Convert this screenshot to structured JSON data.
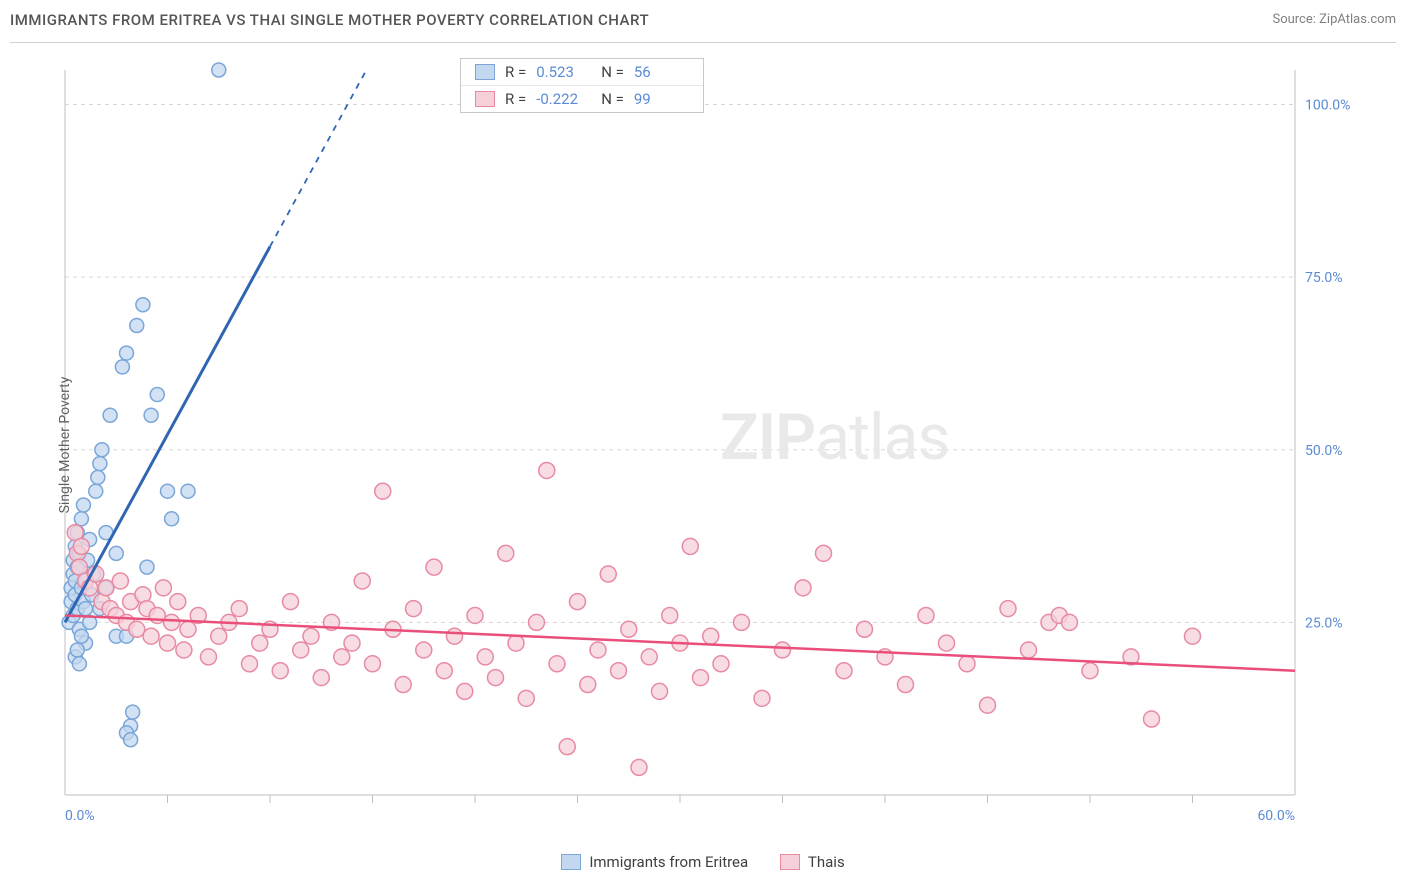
{
  "title": "IMMIGRANTS FROM ERITREA VS THAI SINGLE MOTHER POVERTY CORRELATION CHART",
  "source_label": "Source: ZipAtlas.com",
  "y_axis_label": "Single Mother Poverty",
  "watermark_a": "ZIP",
  "watermark_b": "atlas",
  "chart": {
    "type": "scatter",
    "background_color": "#ffffff",
    "grid_color": "#d8d8d8",
    "axis_color": "#bfbfbf",
    "xlim": [
      0,
      60
    ],
    "ylim": [
      0,
      105
    ],
    "x_tick_labels": [
      {
        "pos": 0,
        "label": "0.0%"
      },
      {
        "pos": 60,
        "label": "60.0%"
      }
    ],
    "x_minor_ticks": [
      5,
      10,
      15,
      20,
      25,
      30,
      35,
      40,
      45,
      50,
      55
    ],
    "y_ticks": [
      {
        "pos": 25,
        "label": "25.0%"
      },
      {
        "pos": 50,
        "label": "50.0%"
      },
      {
        "pos": 75,
        "label": "75.0%"
      },
      {
        "pos": 100,
        "label": "100.0%"
      }
    ],
    "label_color": "#5b8bd4",
    "label_fontsize": 14,
    "series": [
      {
        "name": "Immigrants from Eritrea",
        "marker_fill": "#c3d7ef",
        "marker_stroke": "#7aa6d8",
        "marker_radius": 7,
        "trend_color": "#2f66b3",
        "trend_width": 3,
        "trend_solid_until_x": 10,
        "R": 0.523,
        "N": 56,
        "regression": {
          "x1": 0,
          "y1": 25,
          "x2": 14.7,
          "y2": 105
        },
        "points": [
          [
            0.2,
            25
          ],
          [
            0.3,
            28
          ],
          [
            0.3,
            30
          ],
          [
            0.4,
            32
          ],
          [
            0.4,
            26
          ],
          [
            0.4,
            34
          ],
          [
            0.5,
            29
          ],
          [
            0.5,
            31
          ],
          [
            0.5,
            36
          ],
          [
            0.6,
            38
          ],
          [
            0.6,
            27
          ],
          [
            0.6,
            33
          ],
          [
            0.7,
            35
          ],
          [
            0.7,
            24
          ],
          [
            0.8,
            30
          ],
          [
            0.8,
            40
          ],
          [
            0.9,
            42
          ],
          [
            0.9,
            28
          ],
          [
            1.0,
            31
          ],
          [
            1.0,
            22
          ],
          [
            1.1,
            34
          ],
          [
            1.2,
            37
          ],
          [
            1.2,
            25
          ],
          [
            1.3,
            29
          ],
          [
            1.4,
            32
          ],
          [
            1.5,
            44
          ],
          [
            1.6,
            46
          ],
          [
            1.7,
            48
          ],
          [
            1.7,
            27
          ],
          [
            1.8,
            50
          ],
          [
            2.0,
            38
          ],
          [
            2.0,
            30
          ],
          [
            2.2,
            55
          ],
          [
            2.5,
            23
          ],
          [
            2.5,
            35
          ],
          [
            2.8,
            62
          ],
          [
            3.0,
            64
          ],
          [
            3.0,
            23
          ],
          [
            3.2,
            10
          ],
          [
            3.3,
            12
          ],
          [
            3.5,
            68
          ],
          [
            3.8,
            71
          ],
          [
            4.0,
            33
          ],
          [
            4.2,
            55
          ],
          [
            4.5,
            58
          ],
          [
            5.0,
            44
          ],
          [
            5.2,
            40
          ],
          [
            3.0,
            9
          ],
          [
            3.2,
            8
          ],
          [
            6.0,
            44
          ],
          [
            7.5,
            105
          ],
          [
            0.5,
            20
          ],
          [
            0.6,
            21
          ],
          [
            0.7,
            19
          ],
          [
            0.8,
            23
          ],
          [
            1.0,
            27
          ]
        ]
      },
      {
        "name": "Thais",
        "marker_fill": "#f6d0d9",
        "marker_stroke": "#e88aa2",
        "marker_radius": 8,
        "trend_color": "#e94f7a",
        "trend_width": 2.5,
        "R": -0.222,
        "N": 99,
        "regression": {
          "x1": 0,
          "y1": 26,
          "x2": 60,
          "y2": 18
        },
        "points": [
          [
            0.5,
            38
          ],
          [
            0.6,
            35
          ],
          [
            0.7,
            33
          ],
          [
            0.8,
            36
          ],
          [
            1.0,
            31
          ],
          [
            1.2,
            30
          ],
          [
            1.5,
            32
          ],
          [
            1.8,
            28
          ],
          [
            2.0,
            30
          ],
          [
            2.2,
            27
          ],
          [
            2.5,
            26
          ],
          [
            2.7,
            31
          ],
          [
            3.0,
            25
          ],
          [
            3.2,
            28
          ],
          [
            3.5,
            24
          ],
          [
            3.8,
            29
          ],
          [
            4.0,
            27
          ],
          [
            4.2,
            23
          ],
          [
            4.5,
            26
          ],
          [
            4.8,
            30
          ],
          [
            5.0,
            22
          ],
          [
            5.2,
            25
          ],
          [
            5.5,
            28
          ],
          [
            5.8,
            21
          ],
          [
            6.0,
            24
          ],
          [
            6.5,
            26
          ],
          [
            7.0,
            20
          ],
          [
            7.5,
            23
          ],
          [
            8.0,
            25
          ],
          [
            8.5,
            27
          ],
          [
            9.0,
            19
          ],
          [
            9.5,
            22
          ],
          [
            10.0,
            24
          ],
          [
            10.5,
            18
          ],
          [
            11.0,
            28
          ],
          [
            11.5,
            21
          ],
          [
            12.0,
            23
          ],
          [
            12.5,
            17
          ],
          [
            13.0,
            25
          ],
          [
            13.5,
            20
          ],
          [
            14.0,
            22
          ],
          [
            14.5,
            31
          ],
          [
            15.0,
            19
          ],
          [
            15.5,
            44
          ],
          [
            16.0,
            24
          ],
          [
            16.5,
            16
          ],
          [
            17.0,
            27
          ],
          [
            17.5,
            21
          ],
          [
            18.0,
            33
          ],
          [
            18.5,
            18
          ],
          [
            19.0,
            23
          ],
          [
            19.5,
            15
          ],
          [
            20.0,
            26
          ],
          [
            20.5,
            20
          ],
          [
            21.0,
            17
          ],
          [
            21.5,
            35
          ],
          [
            22.0,
            22
          ],
          [
            22.5,
            14
          ],
          [
            23.0,
            25
          ],
          [
            23.5,
            47
          ],
          [
            24.0,
            19
          ],
          [
            24.5,
            7
          ],
          [
            25.0,
            28
          ],
          [
            25.5,
            16
          ],
          [
            26.0,
            21
          ],
          [
            26.5,
            32
          ],
          [
            27.0,
            18
          ],
          [
            27.5,
            24
          ],
          [
            28.0,
            4
          ],
          [
            28.5,
            20
          ],
          [
            29.0,
            15
          ],
          [
            29.5,
            26
          ],
          [
            30.0,
            22
          ],
          [
            30.5,
            36
          ],
          [
            31.0,
            17
          ],
          [
            31.5,
            23
          ],
          [
            32.0,
            19
          ],
          [
            33.0,
            25
          ],
          [
            34.0,
            14
          ],
          [
            35.0,
            21
          ],
          [
            36.0,
            30
          ],
          [
            37.0,
            35
          ],
          [
            38.0,
            18
          ],
          [
            39.0,
            24
          ],
          [
            40.0,
            20
          ],
          [
            41.0,
            16
          ],
          [
            42.0,
            26
          ],
          [
            43.0,
            22
          ],
          [
            44.0,
            19
          ],
          [
            45.0,
            13
          ],
          [
            46.0,
            27
          ],
          [
            47.0,
            21
          ],
          [
            48.0,
            25
          ],
          [
            48.5,
            26
          ],
          [
            50.0,
            18
          ],
          [
            52.0,
            20
          ],
          [
            53.0,
            11
          ],
          [
            55.0,
            23
          ],
          [
            49.0,
            25
          ]
        ]
      }
    ]
  },
  "legend_top": {
    "r_prefix": "R =",
    "n_prefix": "N ="
  },
  "legend_bottom_labels": [
    "Immigrants from Eritrea",
    "Thais"
  ]
}
